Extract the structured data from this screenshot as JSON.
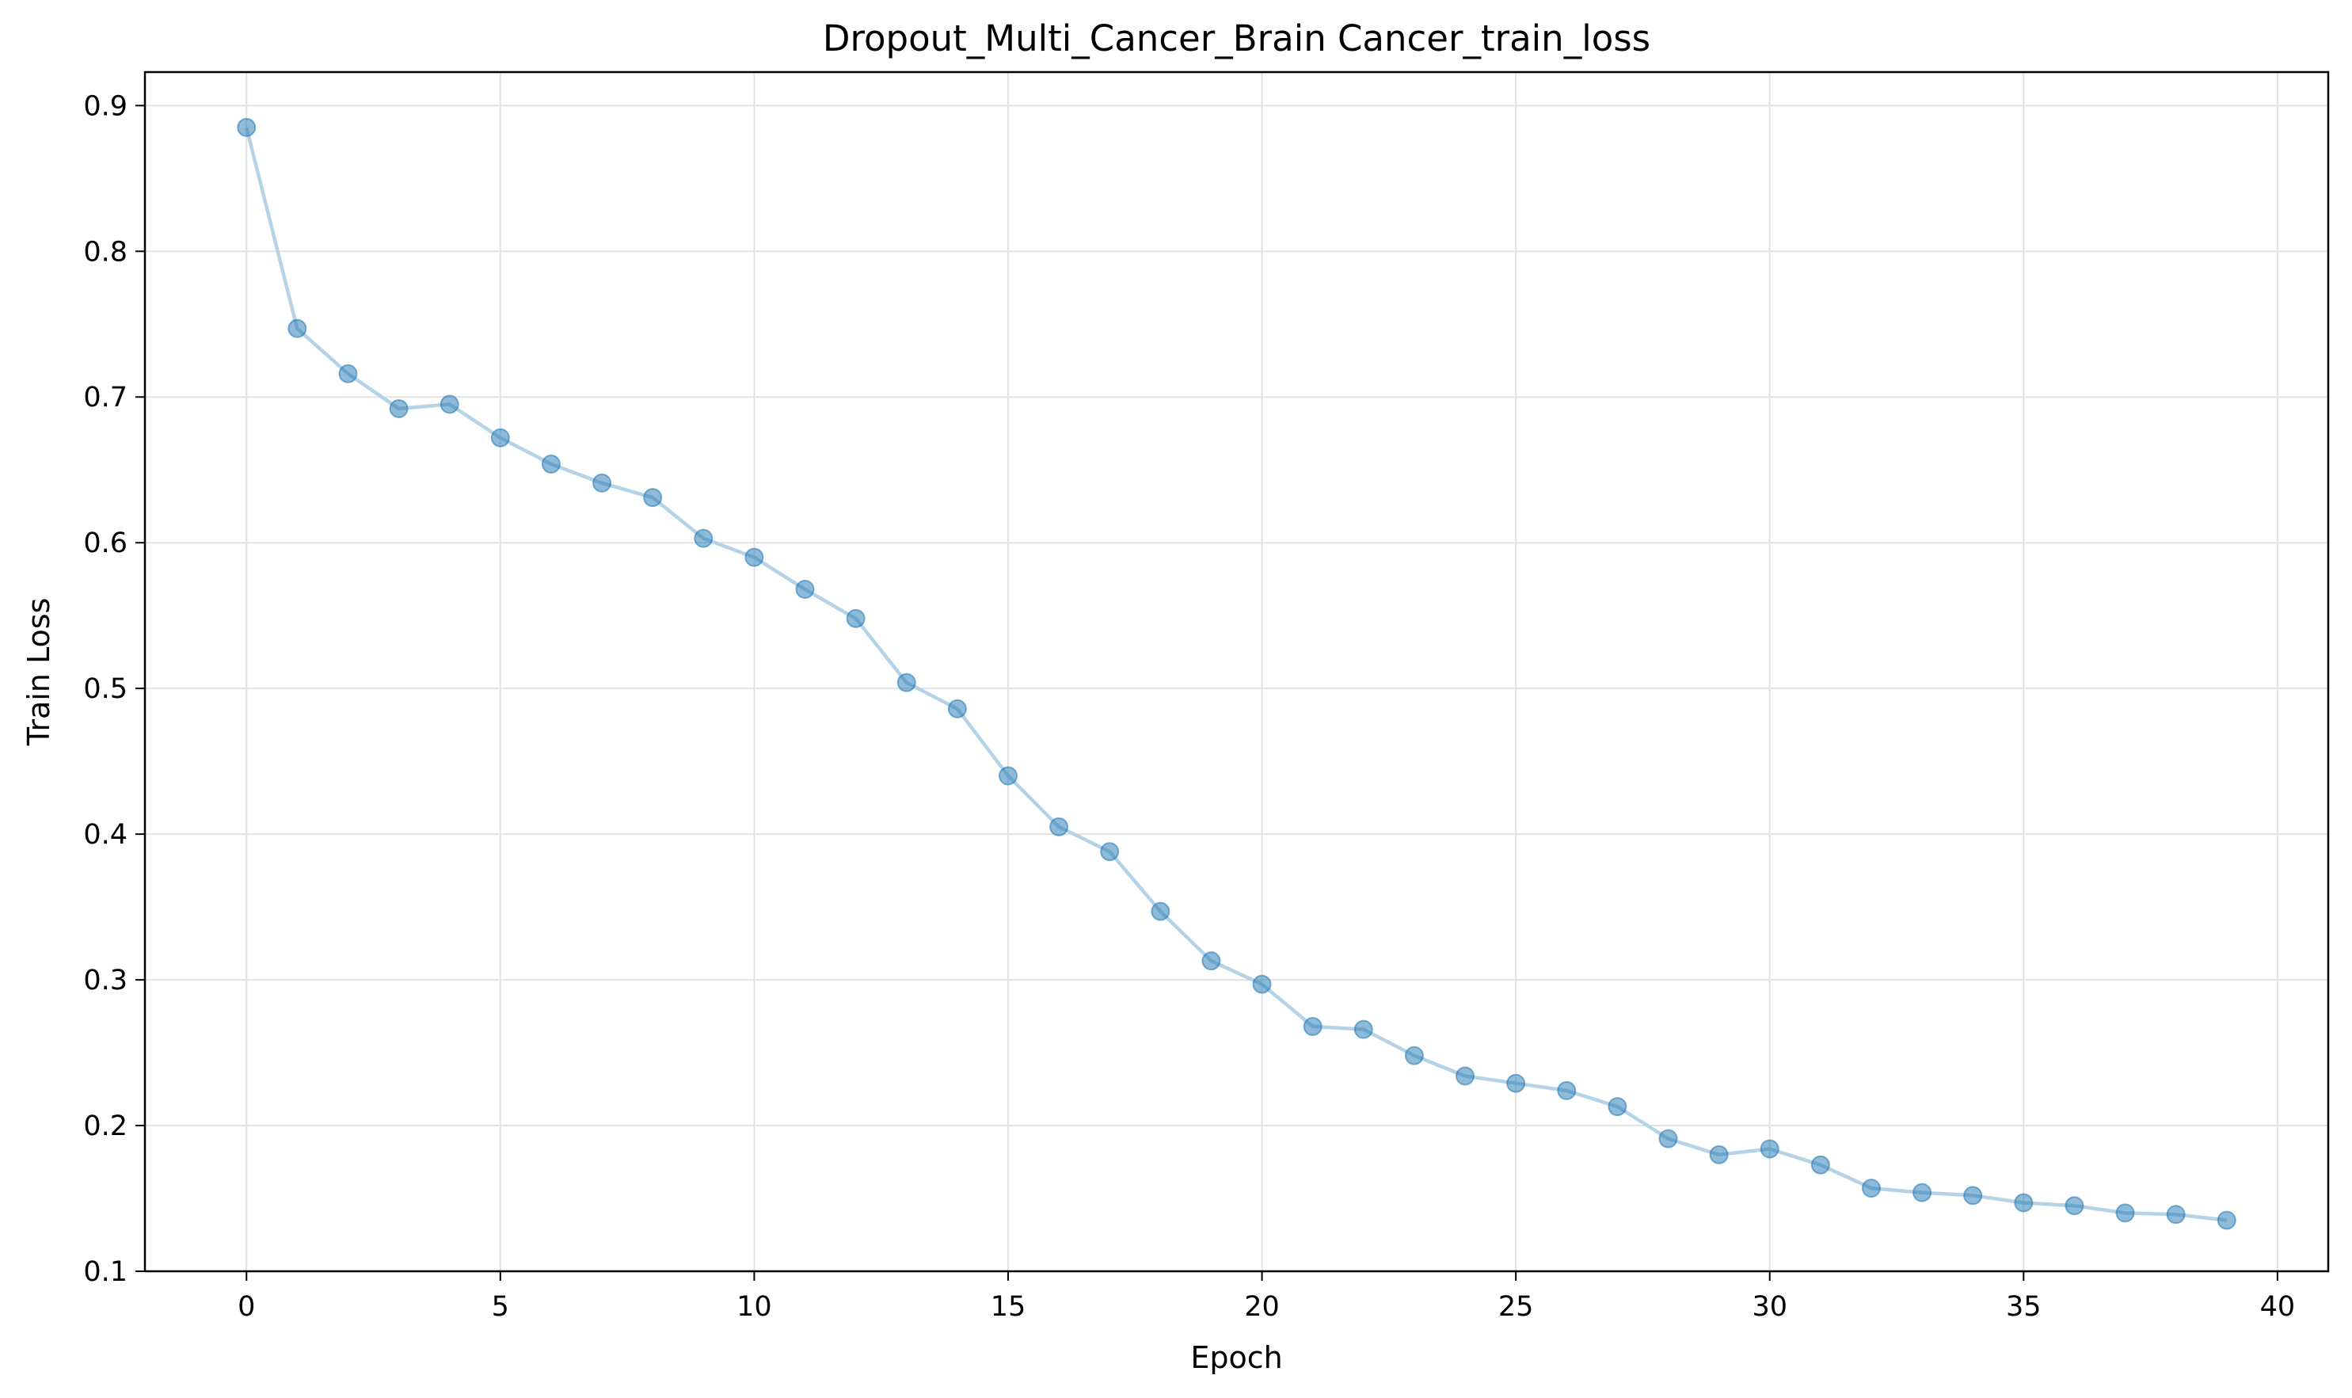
{
  "chart_data": {
    "type": "line",
    "title": "Dropout_Multi_Cancer_Brain Cancer_train_loss",
    "xlabel": "Epoch",
    "ylabel": "Train Loss",
    "xlim": [
      -2,
      41
    ],
    "ylim": [
      0.1,
      0.923
    ],
    "xticks": [
      0,
      5,
      10,
      15,
      20,
      25,
      30,
      35,
      40
    ],
    "yticks": [
      0.1,
      0.2,
      0.3,
      0.4,
      0.5,
      0.6,
      0.7,
      0.8,
      0.9
    ],
    "xtick_labels": [
      "0",
      "5",
      "10",
      "15",
      "20",
      "25",
      "30",
      "35",
      "40"
    ],
    "ytick_labels": [
      "0.1",
      "0.2",
      "0.3",
      "0.4",
      "0.5",
      "0.6",
      "0.7",
      "0.8",
      "0.9"
    ],
    "grid": true,
    "legend": "none",
    "line_color": "#b5d3e7",
    "marker_color": "#1f77b4",
    "series": [
      {
        "x": [
          0,
          1,
          2,
          3,
          4,
          5,
          6,
          7,
          8,
          9,
          10,
          11,
          12,
          13,
          14,
          15,
          16,
          17,
          18,
          19,
          20,
          21,
          22,
          23,
          24,
          25,
          26,
          27,
          28,
          29,
          30,
          31,
          32,
          33,
          34,
          35,
          36,
          37,
          38,
          39
        ],
        "values": [
          0.885,
          0.747,
          0.716,
          0.692,
          0.695,
          0.672,
          0.654,
          0.641,
          0.631,
          0.603,
          0.59,
          0.568,
          0.548,
          0.504,
          0.486,
          0.44,
          0.405,
          0.388,
          0.347,
          0.313,
          0.297,
          0.268,
          0.266,
          0.248,
          0.234,
          0.229,
          0.224,
          0.213,
          0.191,
          0.18,
          0.184,
          0.173,
          0.157,
          0.154,
          0.152,
          0.147,
          0.145,
          0.14,
          0.139,
          0.135
        ]
      }
    ]
  }
}
